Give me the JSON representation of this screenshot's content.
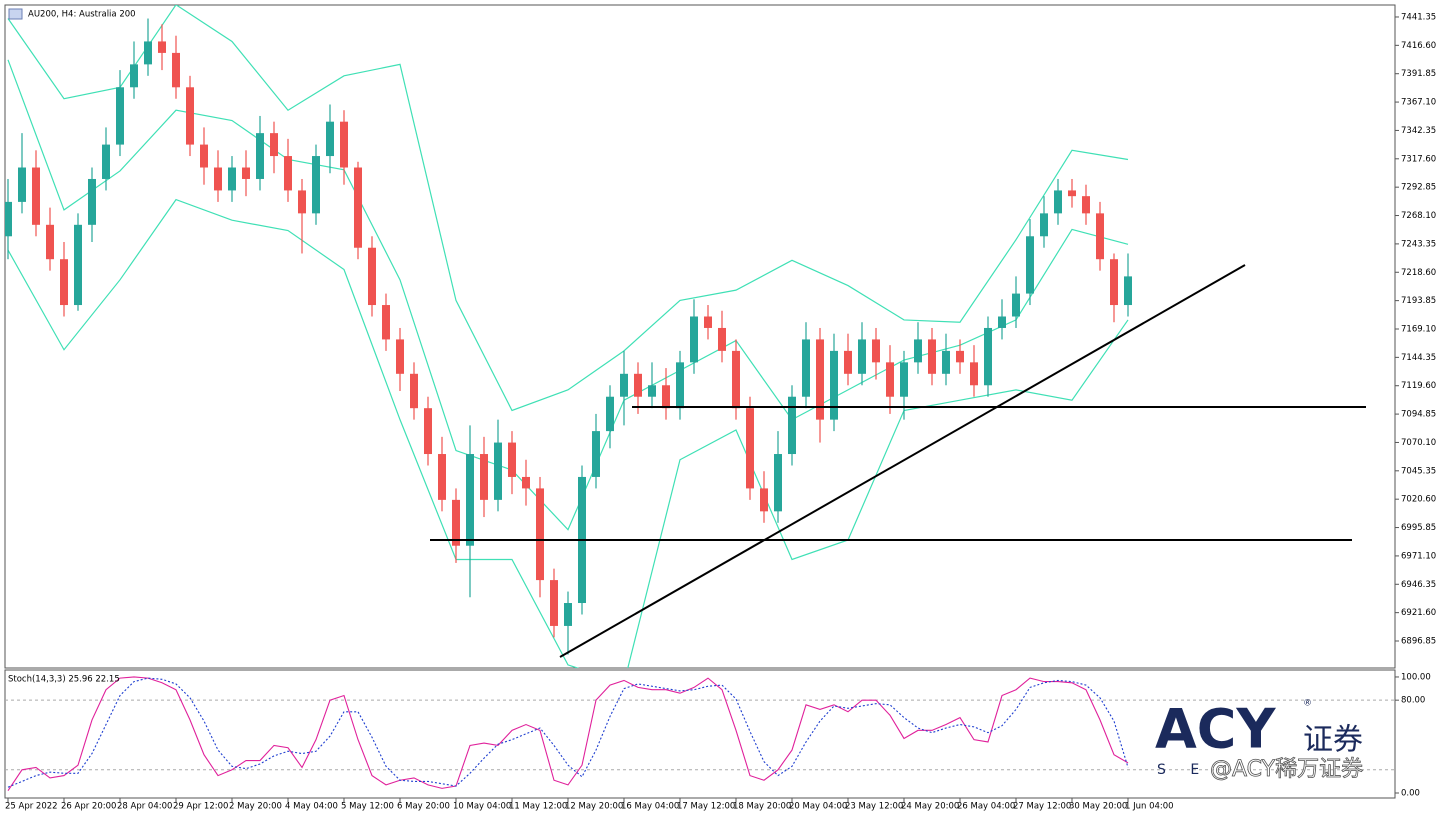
{
  "chart_data": [
    {
      "type": "candlestick",
      "title": "AU200, H4:  Australia 200",
      "categories": [
        "25 Apr 2022",
        null,
        null,
        null,
        "26 Apr 20:00",
        null,
        null,
        null,
        "28 Apr 04:00",
        null,
        null,
        null,
        "29 Apr 12:00",
        null,
        null,
        null,
        "2 May 20:00",
        null,
        null,
        null,
        "4 May 04:00",
        null,
        null,
        null,
        "5 May 12:00",
        null,
        null,
        null,
        "6 May 20:00",
        null,
        null,
        null,
        "10 May 04:00",
        null,
        null,
        null,
        "11 May 12:00",
        null,
        null,
        null,
        "12 May 20:00",
        null,
        null,
        null,
        "16 May 04:00",
        null,
        null,
        null,
        "17 May 12:00",
        null,
        null,
        null,
        "18 May 20:00",
        null,
        null,
        null,
        "20 May 04:00",
        null,
        null,
        null,
        "23 May 12:00",
        null,
        null,
        null,
        "24 May 20:00",
        null,
        null,
        null,
        "26 May 04:00",
        null,
        null,
        null,
        "27 May 12:00",
        null,
        null,
        null,
        "30 May 20:00",
        null,
        null,
        null,
        "1 Jun 04:00"
      ],
      "open": [
        7250,
        7280,
        7310,
        7260,
        7230,
        7190,
        7260,
        7300,
        7330,
        7380,
        7400,
        7420,
        7410,
        7380,
        7330,
        7310,
        7290,
        7310,
        7300,
        7340,
        7320,
        7290,
        7270,
        7320,
        7350,
        7310,
        7240,
        7190,
        7160,
        7130,
        7100,
        7060,
        7020,
        6980,
        7060,
        7020,
        7070,
        7040,
        7030,
        6950,
        6910,
        6930,
        7040,
        7080,
        7110,
        7130,
        7110,
        7120,
        7100,
        7140,
        7180,
        7170,
        7150,
        7100,
        7030,
        7010,
        7060,
        7110,
        7160,
        7090,
        7150,
        7130,
        7160,
        7140,
        7110,
        7140,
        7160,
        7130,
        7150,
        7140,
        7120,
        7170,
        7180,
        7200,
        7250,
        7270,
        7290,
        7285,
        7270,
        7230,
        7190
      ],
      "high": [
        7300,
        7340,
        7325,
        7275,
        7245,
        7270,
        7310,
        7345,
        7395,
        7420,
        7440,
        7435,
        7425,
        7390,
        7345,
        7325,
        7320,
        7325,
        7355,
        7350,
        7335,
        7300,
        7330,
        7365,
        7360,
        7315,
        7250,
        7200,
        7170,
        7140,
        7110,
        7075,
        7030,
        7085,
        7075,
        7090,
        7080,
        7055,
        7040,
        6960,
        6940,
        7050,
        7095,
        7120,
        7150,
        7140,
        7140,
        7135,
        7150,
        7195,
        7190,
        7185,
        7160,
        7110,
        7045,
        7080,
        7120,
        7175,
        7170,
        7165,
        7165,
        7175,
        7170,
        7155,
        7150,
        7175,
        7170,
        7165,
        7160,
        7155,
        7180,
        7195,
        7215,
        7265,
        7285,
        7300,
        7300,
        7295,
        7280,
        7235,
        7235
      ],
      "low": [
        7230,
        7270,
        7250,
        7220,
        7180,
        7185,
        7245,
        7290,
        7320,
        7370,
        7390,
        7395,
        7370,
        7320,
        7295,
        7280,
        7280,
        7285,
        7290,
        7305,
        7280,
        7235,
        7260,
        7305,
        7295,
        7230,
        7180,
        7150,
        7115,
        7090,
        7050,
        7010,
        6965,
        6935,
        7005,
        7010,
        7025,
        7015,
        6935,
        6900,
        6885,
        6920,
        7030,
        7065,
        7085,
        7095,
        7100,
        7090,
        7090,
        7130,
        7160,
        7140,
        7090,
        7020,
        7000,
        7000,
        7050,
        7100,
        7070,
        7080,
        7120,
        7120,
        7125,
        7095,
        7090,
        7130,
        7120,
        7120,
        7130,
        7110,
        7110,
        7160,
        7170,
        7190,
        7240,
        7260,
        7275,
        7260,
        7220,
        7175,
        7180
      ],
      "close": [
        7280,
        7310,
        7260,
        7230,
        7190,
        7260,
        7300,
        7330,
        7380,
        7400,
        7420,
        7410,
        7380,
        7330,
        7310,
        7290,
        7310,
        7300,
        7340,
        7320,
        7290,
        7270,
        7320,
        7350,
        7310,
        7240,
        7190,
        7160,
        7130,
        7100,
        7060,
        7020,
        6980,
        7060,
        7020,
        7070,
        7040,
        7030,
        6950,
        6910,
        6930,
        7040,
        7080,
        7110,
        7130,
        7110,
        7120,
        7100,
        7140,
        7180,
        7170,
        7150,
        7100,
        7030,
        7010,
        7060,
        7110,
        7160,
        7090,
        7150,
        7130,
        7160,
        7140,
        7110,
        7140,
        7160,
        7130,
        7150,
        7140,
        7120,
        7170,
        7180,
        7200,
        7250,
        7270,
        7290,
        7285,
        7270,
        7230,
        7190,
        7215
      ],
      "up_color": "#26a69a",
      "down_color": "#ef5350",
      "bands": [
        {
          "color": "#3fe0b5",
          "x": [
            0,
            4,
            8,
            12,
            16,
            20,
            24,
            28,
            32,
            36,
            40,
            44,
            48,
            52,
            56,
            60,
            64,
            68,
            72,
            76,
            80
          ],
          "values": [
            7440,
            7370,
            7380,
            7452,
            7420,
            7360,
            7390,
            7400,
            7194,
            7098,
            7116,
            7150,
            7194,
            7203,
            7229,
            7207,
            7177,
            7175,
            7247,
            7325,
            7317
          ]
        },
        {
          "color": "#3fe0b5",
          "x": [
            0,
            4,
            8,
            12,
            16,
            20,
            24,
            28,
            32,
            36,
            40,
            44,
            48,
            52,
            56,
            60,
            64,
            68,
            72,
            76,
            80
          ],
          "values": [
            7404,
            7273,
            7307,
            7360,
            7351,
            7317,
            7308,
            7212,
            7063,
            7046,
            6994,
            7107,
            7133,
            7159,
            7090,
            7116,
            7142,
            7155,
            7177,
            7256,
            7243
          ]
        },
        {
          "color": "#3fe0b5",
          "x": [
            0,
            4,
            8,
            12,
            16,
            20,
            24,
            28,
            32,
            36,
            40,
            44,
            48,
            52,
            56,
            60,
            64,
            68,
            72,
            76,
            80
          ],
          "values": [
            7238,
            7151,
            7212,
            7282,
            7264,
            7255,
            7221,
            7090,
            6968,
            6968,
            6876,
            6860,
            7055,
            7081,
            6968,
            6985,
            7098,
            7107,
            7116,
            7107,
            7177
          ]
        }
      ],
      "ylim": [
        6873.3,
        7451.8
      ],
      "yticks": [
        7441.35,
        {
          "value": 7416.6,
          "label": "7416.60"
        },
        7391.85,
        {
          "value": 7367.1,
          "label": "7367.10"
        },
        7342.35,
        {
          "value": 7317.6,
          "label": "7317.60"
        },
        7292.85,
        {
          "value": 7268.1,
          "label": "7268.10"
        },
        7243.35,
        {
          "value": 7218.6,
          "label": "7218.60"
        },
        7193.85,
        {
          "value": 7169.1,
          "label": "7169.10"
        },
        7144.35,
        {
          "value": 7119.6,
          "label": "7119.60"
        },
        7094.85,
        {
          "value": 7070.1,
          "label": "7070.10"
        },
        7045.35,
        {
          "value": 7020.6,
          "label": "7020.60"
        },
        6995.85,
        {
          "value": 6971.1,
          "label": "6971.10"
        },
        6946.35,
        {
          "value": 6921.6,
          "label": "6921.60"
        },
        6896.85
      ]
    },
    {
      "type": "line",
      "title": "Stoch(14,3,3) 25.96 22.15",
      "series": [
        {
          "color": "#e0219b",
          "style": "solid",
          "values": [
            2,
            20,
            22,
            13,
            15,
            24,
            63,
            89,
            99,
            100,
            99,
            95,
            89,
            63,
            33,
            15,
            20,
            28,
            28,
            41,
            39,
            22,
            46,
            80,
            84,
            46,
            15,
            7,
            11,
            13,
            7,
            4,
            6,
            41,
            43,
            41,
            54,
            59,
            54,
            11,
            7,
            24,
            80,
            93,
            97,
            91,
            89,
            89,
            86,
            91,
            99,
            89,
            54,
            15,
            11,
            20,
            37,
            76,
            72,
            76,
            70,
            80,
            80,
            67,
            47,
            54,
            54,
            59,
            65,
            46,
            44,
            84,
            89,
            99,
            96,
            96,
            95,
            89,
            63,
            33,
            26
          ]
        },
        {
          "color": "#1f3fd0",
          "style": "dotted",
          "values": [
            5,
            10,
            15,
            18,
            17,
            17,
            34,
            59,
            84,
            96,
            99,
            98,
            94,
            82,
            62,
            37,
            23,
            21,
            25,
            32,
            36,
            34,
            36,
            49,
            70,
            70,
            48,
            23,
            11,
            10,
            10,
            8,
            6,
            17,
            30,
            42,
            46,
            51,
            56,
            41,
            24,
            14,
            37,
            66,
            90,
            94,
            92,
            90,
            88,
            89,
            92,
            93,
            81,
            53,
            27,
            15,
            23,
            44,
            62,
            75,
            73,
            75,
            77,
            76,
            65,
            56,
            52,
            56,
            59,
            57,
            52,
            58,
            72,
            91,
            95,
            97,
            96,
            93,
            82,
            62,
            22
          ]
        }
      ],
      "levels": [
        20,
        80
      ],
      "ylim": [
        -4.3,
        106
      ],
      "yticks": [
        {
          "value": 100,
          "label": "100.00"
        },
        {
          "value": 80,
          "label": "80.00"
        },
        {
          "value": 0,
          "label": "0.00"
        }
      ]
    }
  ],
  "watermark": {
    "logo": "ACY",
    "name": "证券",
    "letters": "S E",
    "handle": "@ACY稀万证券",
    "mark": "®"
  }
}
